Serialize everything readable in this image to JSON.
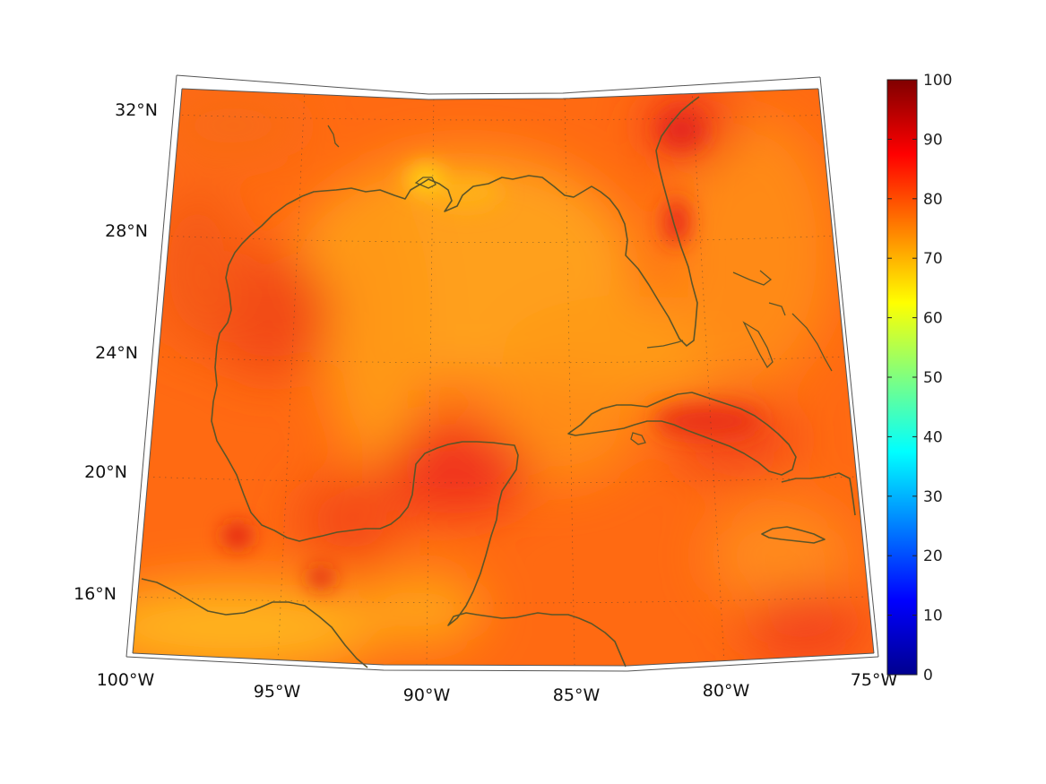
{
  "map": {
    "projection": "conic",
    "region": "Gulf of Mexico and western Caribbean",
    "variable_range": [
      0,
      100
    ],
    "colormap": "jet",
    "lat_labels": [
      "32°N",
      "28°N",
      "24°N",
      "20°N",
      "16°N"
    ],
    "lon_labels": [
      "100°W",
      "95°W",
      "90°W",
      "85°W",
      "80°W",
      "75°W"
    ]
  },
  "colorbar": {
    "ticks": [
      "0",
      "10",
      "20",
      "30",
      "40",
      "50",
      "60",
      "70",
      "80",
      "90",
      "100"
    ]
  },
  "colors": {
    "coastline": "#5c5428",
    "field_dominant": "#ff6a10",
    "field_high": "#ee2a10",
    "field_low": "#ffbb10"
  }
}
